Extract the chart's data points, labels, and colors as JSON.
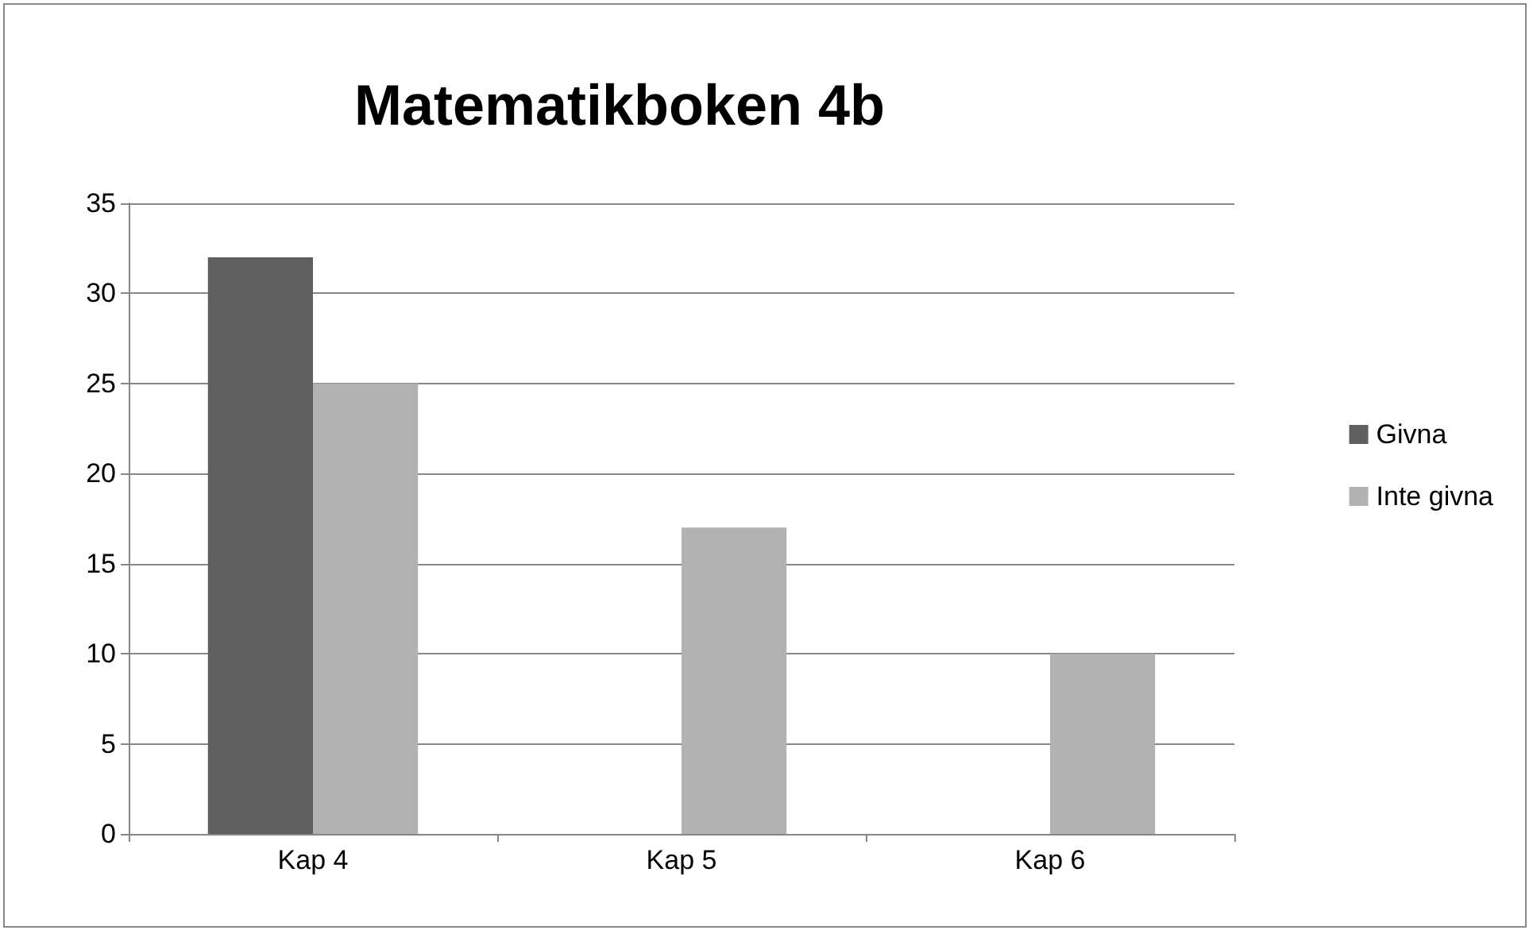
{
  "chart_data": {
    "type": "bar",
    "title": "Matematikboken 4b",
    "categories": [
      "Kap 4",
      "Kap 5",
      "Kap 6"
    ],
    "series": [
      {
        "name": "Givna",
        "color": "#5f5f5f",
        "values": [
          32,
          0,
          0
        ]
      },
      {
        "name": "Inte givna",
        "color": "#b2b2b2",
        "values": [
          25,
          17,
          10
        ]
      }
    ],
    "ylim": [
      0,
      35
    ],
    "yticks": [
      0,
      5,
      10,
      15,
      20,
      25,
      30,
      35
    ],
    "grid": "y",
    "legend": "right"
  }
}
